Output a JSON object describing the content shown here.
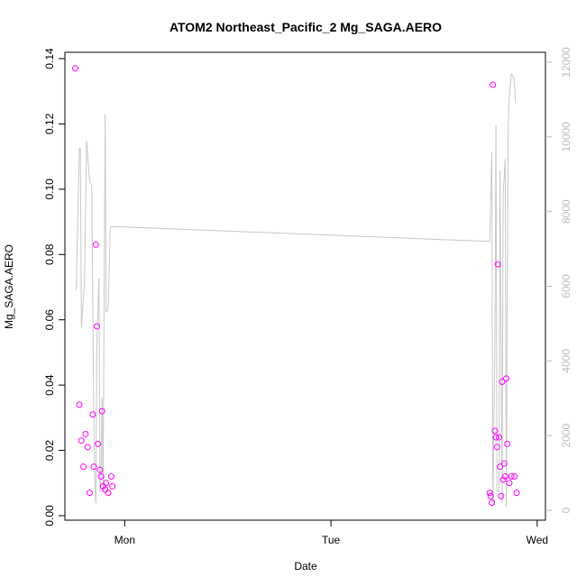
{
  "chart_data": {
    "type": "scatter",
    "title": "ATOM2 Northeast_Pacific_2 Mg_SAGA.AERO",
    "xlabel": "Date",
    "ylabel": "Mg_SAGA.AERO",
    "x_ticks": [
      {
        "label": "Mon",
        "value": 1.0
      },
      {
        "label": "Tue",
        "value": 2.0
      },
      {
        "label": "Wed",
        "value": 3.0
      }
    ],
    "xlim": [
      0.71,
      3.04
    ],
    "ylim": [
      0,
      0.14
    ],
    "y_ticks": [
      "0.00",
      "0.02",
      "0.04",
      "0.06",
      "0.08",
      "0.10",
      "0.12",
      "0.14"
    ],
    "y2lim": [
      0,
      12000
    ],
    "y2_ticks": [
      "0",
      "2000",
      "4000",
      "6000",
      "8000",
      "10000",
      "12000"
    ],
    "grid": false,
    "series": [
      {
        "kind": "points",
        "color": "#ff00ff",
        "points": [
          [
            0.76,
            0.137
          ],
          [
            0.78,
            0.034
          ],
          [
            0.79,
            0.023
          ],
          [
            0.8,
            0.015
          ],
          [
            0.81,
            0.025
          ],
          [
            0.82,
            0.021
          ],
          [
            0.83,
            0.007
          ],
          [
            0.845,
            0.031
          ],
          [
            0.85,
            0.015
          ],
          [
            0.86,
            0.083
          ],
          [
            0.865,
            0.058
          ],
          [
            0.87,
            0.022
          ],
          [
            0.88,
            0.014
          ],
          [
            0.885,
            0.012
          ],
          [
            0.89,
            0.032
          ],
          [
            0.895,
            0.009
          ],
          [
            0.905,
            0.008
          ],
          [
            0.91,
            0.01
          ],
          [
            0.92,
            0.007
          ],
          [
            0.935,
            0.012
          ],
          [
            0.94,
            0.009
          ],
          [
            2.77,
            0.007
          ],
          [
            2.775,
            0.006
          ],
          [
            2.78,
            0.004
          ],
          [
            2.785,
            0.132
          ],
          [
            2.795,
            0.026
          ],
          [
            2.8,
            0.024
          ],
          [
            2.805,
            0.021
          ],
          [
            2.81,
            0.077
          ],
          [
            2.815,
            0.024
          ],
          [
            2.82,
            0.015
          ],
          [
            2.825,
            0.006
          ],
          [
            2.83,
            0.041
          ],
          [
            2.835,
            0.011
          ],
          [
            2.84,
            0.016
          ],
          [
            2.845,
            0.012
          ],
          [
            2.85,
            0.042
          ],
          [
            2.855,
            0.022
          ],
          [
            2.865,
            0.01
          ],
          [
            2.875,
            0.012
          ],
          [
            2.89,
            0.012
          ],
          [
            2.9,
            0.007
          ]
        ]
      },
      {
        "kind": "line",
        "axis": "right",
        "color": "#c8c8c8",
        "points": [
          [
            0.765,
            5900
          ],
          [
            0.78,
            9700
          ],
          [
            0.785,
            9700
          ],
          [
            0.79,
            4900
          ],
          [
            0.805,
            6100
          ],
          [
            0.815,
            9900
          ],
          [
            0.83,
            8800
          ],
          [
            0.84,
            8700
          ],
          [
            0.85,
            2500
          ],
          [
            0.855,
            600
          ],
          [
            0.86,
            200
          ],
          [
            0.865,
            4500
          ],
          [
            0.875,
            6200
          ],
          [
            0.88,
            500
          ],
          [
            0.885,
            900
          ],
          [
            0.89,
            3000
          ],
          [
            0.895,
            500
          ],
          [
            0.905,
            10600
          ],
          [
            0.91,
            5300
          ],
          [
            0.92,
            5400
          ],
          [
            0.93,
            7600
          ],
          [
            0.94,
            7600
          ],
          [
            2.77,
            7200
          ],
          [
            2.78,
            9600
          ],
          [
            2.785,
            100
          ],
          [
            2.795,
            4500
          ],
          [
            2.8,
            10300
          ],
          [
            2.805,
            500
          ],
          [
            2.815,
            500
          ],
          [
            2.82,
            9100
          ],
          [
            2.83,
            200
          ],
          [
            2.835,
            8500
          ],
          [
            2.845,
            9400
          ],
          [
            2.85,
            100
          ],
          [
            2.855,
            5700
          ],
          [
            2.86,
            10500
          ],
          [
            2.865,
            11100
          ],
          [
            2.875,
            11700
          ],
          [
            2.885,
            11600
          ],
          [
            2.89,
            11400
          ],
          [
            2.895,
            10900
          ]
        ]
      }
    ]
  }
}
